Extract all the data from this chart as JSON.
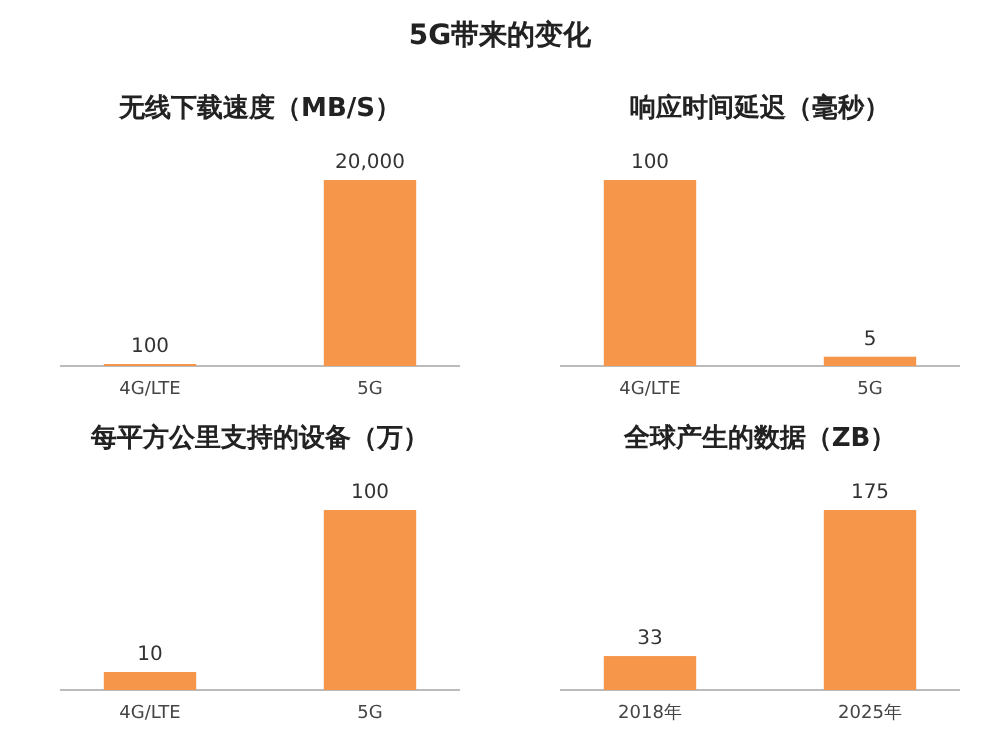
{
  "chart_data": [
    {
      "type": "other",
      "title": "5G带来的变化"
    },
    {
      "type": "bar",
      "title": "无线下载速度（MB/S）",
      "categories": [
        "4G/LTE",
        "5G"
      ],
      "values": [
        100,
        20000
      ],
      "value_labels": [
        "100",
        "20,000"
      ],
      "color": "#f5964a"
    },
    {
      "type": "bar",
      "title": "响应时间延迟（毫秒）",
      "categories": [
        "4G/LTE",
        "5G"
      ],
      "values": [
        100,
        5
      ],
      "value_labels": [
        "100",
        "5"
      ],
      "color": "#f5964a"
    },
    {
      "type": "bar",
      "title": "每平方公里支持的设备（万）",
      "categories": [
        "4G/LTE",
        "5G"
      ],
      "values": [
        10,
        100
      ],
      "value_labels": [
        "10",
        "100"
      ],
      "color": "#f5964a"
    },
    {
      "type": "bar",
      "title": "全球产生的数据（ZB）",
      "categories": [
        "2018年",
        "2025年"
      ],
      "values": [
        33,
        175
      ],
      "value_labels": [
        "33",
        "175"
      ],
      "color": "#f5964a"
    }
  ]
}
